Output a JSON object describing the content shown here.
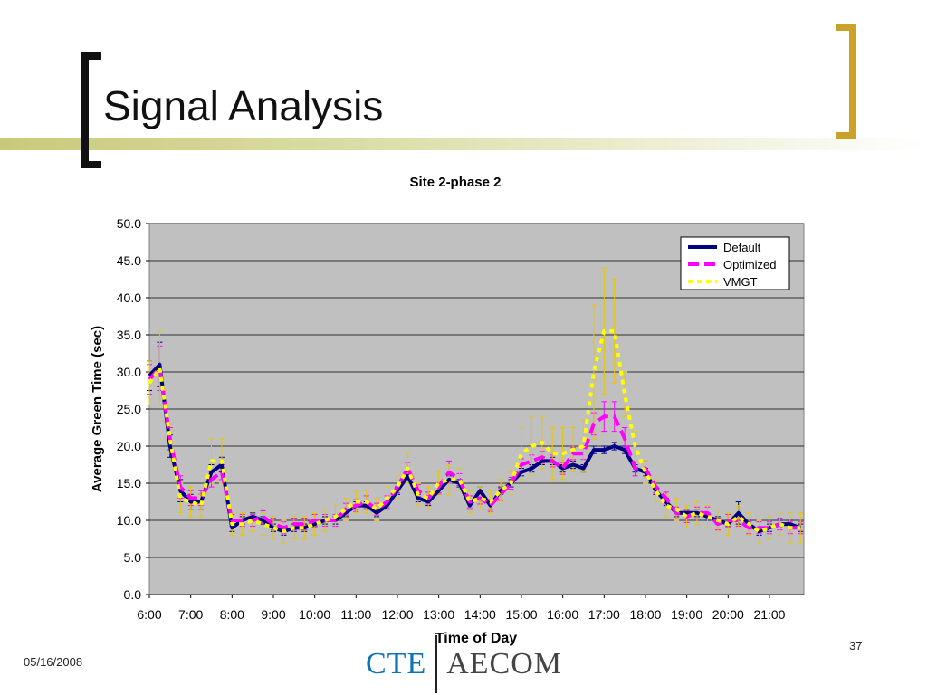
{
  "slide": {
    "title": "Signal Analysis",
    "date": "05/16/2008",
    "page_number": "37",
    "logo_left": "CTE",
    "logo_right": "AECOM",
    "accent_colors": {
      "title_bar": "#c8ca7a",
      "right_bracket": "#c9a227",
      "left_bracket": "#111111"
    }
  },
  "chart_data": {
    "type": "line",
    "title": "Site 2-phase 2",
    "xlabel": "Time of Day",
    "ylabel": "Average Green Time (sec)",
    "ylim": [
      0,
      50
    ],
    "yticks": [
      "0.0",
      "5.0",
      "10.0",
      "15.0",
      "20.0",
      "25.0",
      "30.0",
      "35.0",
      "40.0",
      "45.0",
      "50.0"
    ],
    "xlim": [
      6,
      21.833
    ],
    "xticks": [
      "6:00",
      "7:00",
      "8:00",
      "9:00",
      "10:00",
      "11:00",
      "12:00",
      "13:00",
      "14:00",
      "15:00",
      "16:00",
      "17:00",
      "18:00",
      "19:00",
      "20:00",
      "21:00"
    ],
    "grid": true,
    "legend_position": "top-right",
    "plot_background": "#c0c0c0",
    "x": [
      6.0,
      6.25,
      6.5,
      6.75,
      7.0,
      7.25,
      7.5,
      7.75,
      8.0,
      8.25,
      8.5,
      8.75,
      9.0,
      9.25,
      9.5,
      9.75,
      10.0,
      10.25,
      10.5,
      10.75,
      11.0,
      11.25,
      11.5,
      11.75,
      12.0,
      12.25,
      12.5,
      12.75,
      13.0,
      13.25,
      13.5,
      13.75,
      14.0,
      14.25,
      14.5,
      14.75,
      15.0,
      15.25,
      15.5,
      15.75,
      16.0,
      16.25,
      16.5,
      16.75,
      17.0,
      17.25,
      17.5,
      17.75,
      18.0,
      18.25,
      18.5,
      18.75,
      19.0,
      19.25,
      19.5,
      19.75,
      20.0,
      20.25,
      20.5,
      20.75,
      21.0,
      21.25,
      21.5,
      21.75
    ],
    "series": [
      {
        "name": "Default",
        "color": "#000080",
        "dash": "solid",
        "values": [
          29.5,
          31.0,
          20.0,
          14.0,
          12.5,
          12.5,
          16.5,
          17.5,
          9.0,
          10.0,
          10.5,
          10.0,
          9.0,
          8.5,
          9.0,
          9.0,
          9.5,
          10.0,
          10.0,
          11.0,
          12.0,
          12.0,
          11.0,
          12.0,
          14.0,
          16.0,
          13.0,
          12.5,
          14.0,
          15.5,
          15.0,
          12.0,
          14.0,
          12.0,
          14.0,
          15.0,
          16.5,
          17.0,
          18.0,
          18.0,
          17.0,
          17.5,
          17.0,
          19.5,
          19.5,
          20.0,
          19.5,
          17.0,
          16.5,
          14.0,
          12.5,
          11.0,
          11.0,
          11.0,
          10.5,
          10.0,
          9.5,
          11.0,
          9.5,
          8.5,
          9.0,
          9.5,
          9.5,
          9.0
        ],
        "error": [
          2.0,
          3.0,
          1.5,
          1.5,
          1.0,
          1.0,
          1.0,
          1.0,
          0.5,
          0.5,
          0.5,
          0.5,
          0.5,
          0.5,
          0.5,
          0.5,
          0.5,
          0.5,
          0.5,
          0.5,
          0.5,
          0.5,
          0.5,
          0.5,
          0.5,
          0.5,
          0.5,
          0.5,
          0.5,
          0.5,
          0.5,
          0.5,
          0.5,
          0.5,
          0.5,
          0.5,
          0.5,
          0.5,
          0.5,
          0.5,
          0.5,
          0.5,
          0.5,
          0.5,
          0.5,
          0.5,
          0.5,
          0.5,
          0.5,
          0.5,
          0.5,
          0.5,
          0.5,
          0.5,
          0.5,
          0.5,
          0.5,
          1.5,
          0.5,
          0.5,
          0.5,
          0.5,
          0.5,
          0.5
        ]
      },
      {
        "name": "Optimized",
        "color": "#ff00ff",
        "dash": "long",
        "values": [
          29.0,
          30.5,
          21.0,
          14.5,
          13.0,
          13.0,
          15.5,
          16.5,
          10.0,
          10.0,
          10.0,
          10.5,
          9.5,
          9.0,
          9.5,
          9.5,
          10.0,
          10.0,
          10.0,
          11.5,
          12.0,
          12.5,
          11.5,
          12.5,
          14.5,
          17.0,
          14.0,
          13.0,
          14.5,
          16.5,
          15.5,
          12.5,
          13.0,
          12.0,
          13.5,
          15.0,
          17.5,
          18.0,
          18.5,
          18.0,
          17.0,
          19.0,
          19.0,
          23.0,
          24.0,
          24.0,
          21.0,
          17.0,
          17.0,
          14.5,
          13.0,
          11.0,
          10.5,
          11.0,
          11.0,
          9.5,
          10.0,
          10.0,
          9.0,
          9.0,
          9.0,
          9.5,
          9.0,
          9.0
        ],
        "error": [
          2.0,
          3.0,
          1.5,
          1.5,
          1.0,
          1.0,
          1.0,
          1.0,
          0.8,
          0.8,
          0.8,
          0.8,
          0.8,
          0.8,
          0.8,
          0.8,
          0.8,
          0.8,
          0.8,
          0.8,
          0.8,
          0.8,
          0.8,
          0.8,
          0.8,
          0.8,
          0.8,
          0.8,
          0.8,
          1.5,
          0.8,
          0.8,
          0.8,
          0.8,
          0.8,
          0.8,
          0.8,
          0.8,
          0.8,
          0.8,
          0.8,
          0.8,
          0.8,
          1.5,
          2.0,
          2.0,
          1.5,
          1.0,
          1.0,
          0.8,
          0.8,
          0.8,
          0.8,
          0.8,
          0.8,
          0.8,
          0.8,
          0.8,
          0.8,
          0.8,
          0.8,
          0.8,
          0.8,
          0.8
        ]
      },
      {
        "name": "VMGT",
        "color": "#ffff00",
        "dash": "short",
        "values": [
          28.5,
          30.5,
          21.0,
          13.0,
          12.5,
          12.0,
          18.0,
          18.0,
          9.5,
          9.5,
          10.0,
          9.5,
          9.0,
          8.5,
          9.0,
          9.0,
          9.5,
          10.0,
          10.5,
          11.5,
          12.5,
          12.5,
          11.5,
          13.0,
          14.5,
          17.0,
          13.5,
          13.0,
          15.0,
          15.5,
          15.5,
          12.5,
          13.0,
          12.5,
          14.0,
          15.0,
          19.0,
          20.0,
          20.5,
          19.0,
          19.0,
          19.5,
          20.0,
          30.0,
          35.5,
          35.5,
          27.0,
          20.0,
          16.5,
          14.0,
          12.0,
          11.5,
          10.5,
          11.0,
          10.5,
          10.0,
          9.5,
          10.5,
          9.5,
          8.5,
          9.0,
          9.5,
          9.0,
          9.0
        ],
        "error": [
          3.0,
          5.0,
          2.0,
          2.0,
          2.0,
          1.5,
          3.0,
          3.0,
          1.5,
          1.5,
          1.5,
          1.5,
          1.5,
          1.5,
          1.5,
          1.5,
          1.5,
          1.5,
          1.5,
          1.5,
          1.5,
          1.5,
          1.5,
          1.5,
          1.5,
          2.0,
          1.5,
          1.5,
          1.5,
          2.0,
          1.5,
          1.5,
          1.5,
          1.5,
          1.5,
          1.5,
          3.5,
          4.0,
          3.5,
          3.5,
          3.5,
          3.0,
          3.5,
          9.0,
          8.5,
          7.0,
          3.0,
          2.0,
          1.5,
          1.5,
          1.5,
          1.5,
          1.5,
          1.5,
          1.5,
          1.5,
          1.5,
          1.5,
          1.5,
          1.5,
          1.5,
          1.5,
          2.0,
          2.0
        ]
      }
    ]
  }
}
